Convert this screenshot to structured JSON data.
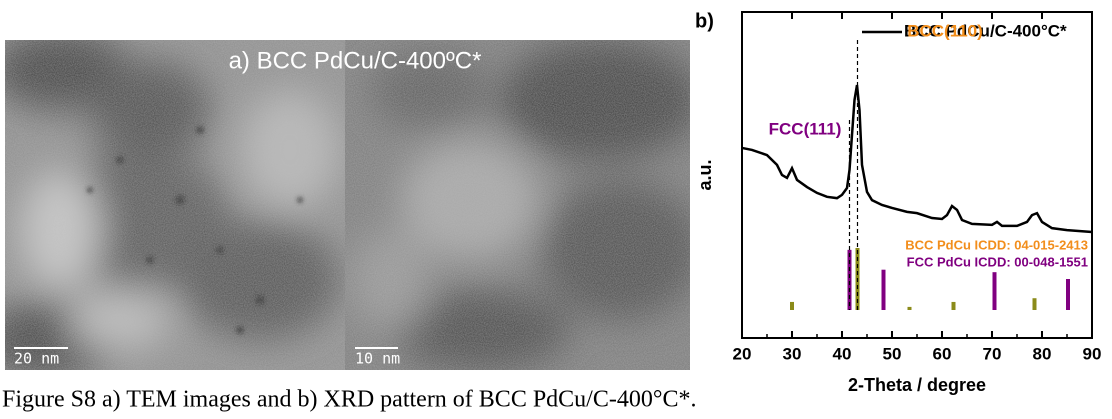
{
  "panel_a": {
    "label": "a) BCC PdCu/C-400ºC*",
    "scale_bars": [
      "20 nm",
      "10 nm"
    ]
  },
  "caption": "Figure S8 a) TEM images and b) XRD pattern of BCC PdCu/C-400°C*.",
  "chart_data": {
    "type": "line",
    "panel_label": "b)",
    "x_label": "2-Theta / degree",
    "y_label": "a.u.",
    "xlim": [
      20,
      90
    ],
    "xticks": [
      20,
      30,
      40,
      50,
      60,
      70,
      80,
      90
    ],
    "ylim": [
      0,
      100
    ],
    "x": [
      20,
      22,
      25,
      27,
      28,
      29,
      30,
      31,
      33,
      35,
      37,
      39,
      40,
      41,
      41.5,
      42,
      42.5,
      43,
      43.5,
      44,
      45,
      46,
      48,
      50,
      53,
      55,
      58,
      60,
      61,
      62,
      63,
      64,
      66,
      70,
      71,
      72,
      75,
      77,
      78,
      79,
      80,
      82,
      85,
      90
    ],
    "series": [
      {
        "name": "BCC PdCu/C-400°C*",
        "color": "#000000",
        "values": [
          58.3,
          57.7,
          56.1,
          53.1,
          50.0,
          49.1,
          52.1,
          48.5,
          46.3,
          44.5,
          43.3,
          42.9,
          43.9,
          46.0,
          51.5,
          62.3,
          73.0,
          77.6,
          69.9,
          53.1,
          44.8,
          42.3,
          40.8,
          39.9,
          38.7,
          38.3,
          36.8,
          36.5,
          37.7,
          40.5,
          39.3,
          36.2,
          35.0,
          34.7,
          35.6,
          34.4,
          34.4,
          35.6,
          37.7,
          38.3,
          35.6,
          33.7,
          33.1,
          32.5
        ]
      }
    ],
    "references": [
      {
        "name": "BCC PdCu ICDD: 04-015-2413",
        "color": "#8b8b1a",
        "label_color": "#f28e1c",
        "x": [
          30,
          43.1,
          53.5,
          62.3,
          78.5
        ],
        "values": [
          13,
          100,
          5,
          13,
          19
        ]
      },
      {
        "name": "FCC PdCu ICDD: 00-048-1551",
        "color": "#800080",
        "label_color": "#800080",
        "x": [
          41.5,
          48.3,
          70.5,
          85.2
        ],
        "values": [
          97,
          65,
          61,
          50
        ]
      }
    ],
    "dashed_lines": [
      41.5,
      43.1
    ],
    "annotations": [
      {
        "text": "BCC(110)",
        "color": "#f28e1c"
      },
      {
        "text": "FCC(111)",
        "color": "#800080"
      }
    ]
  }
}
